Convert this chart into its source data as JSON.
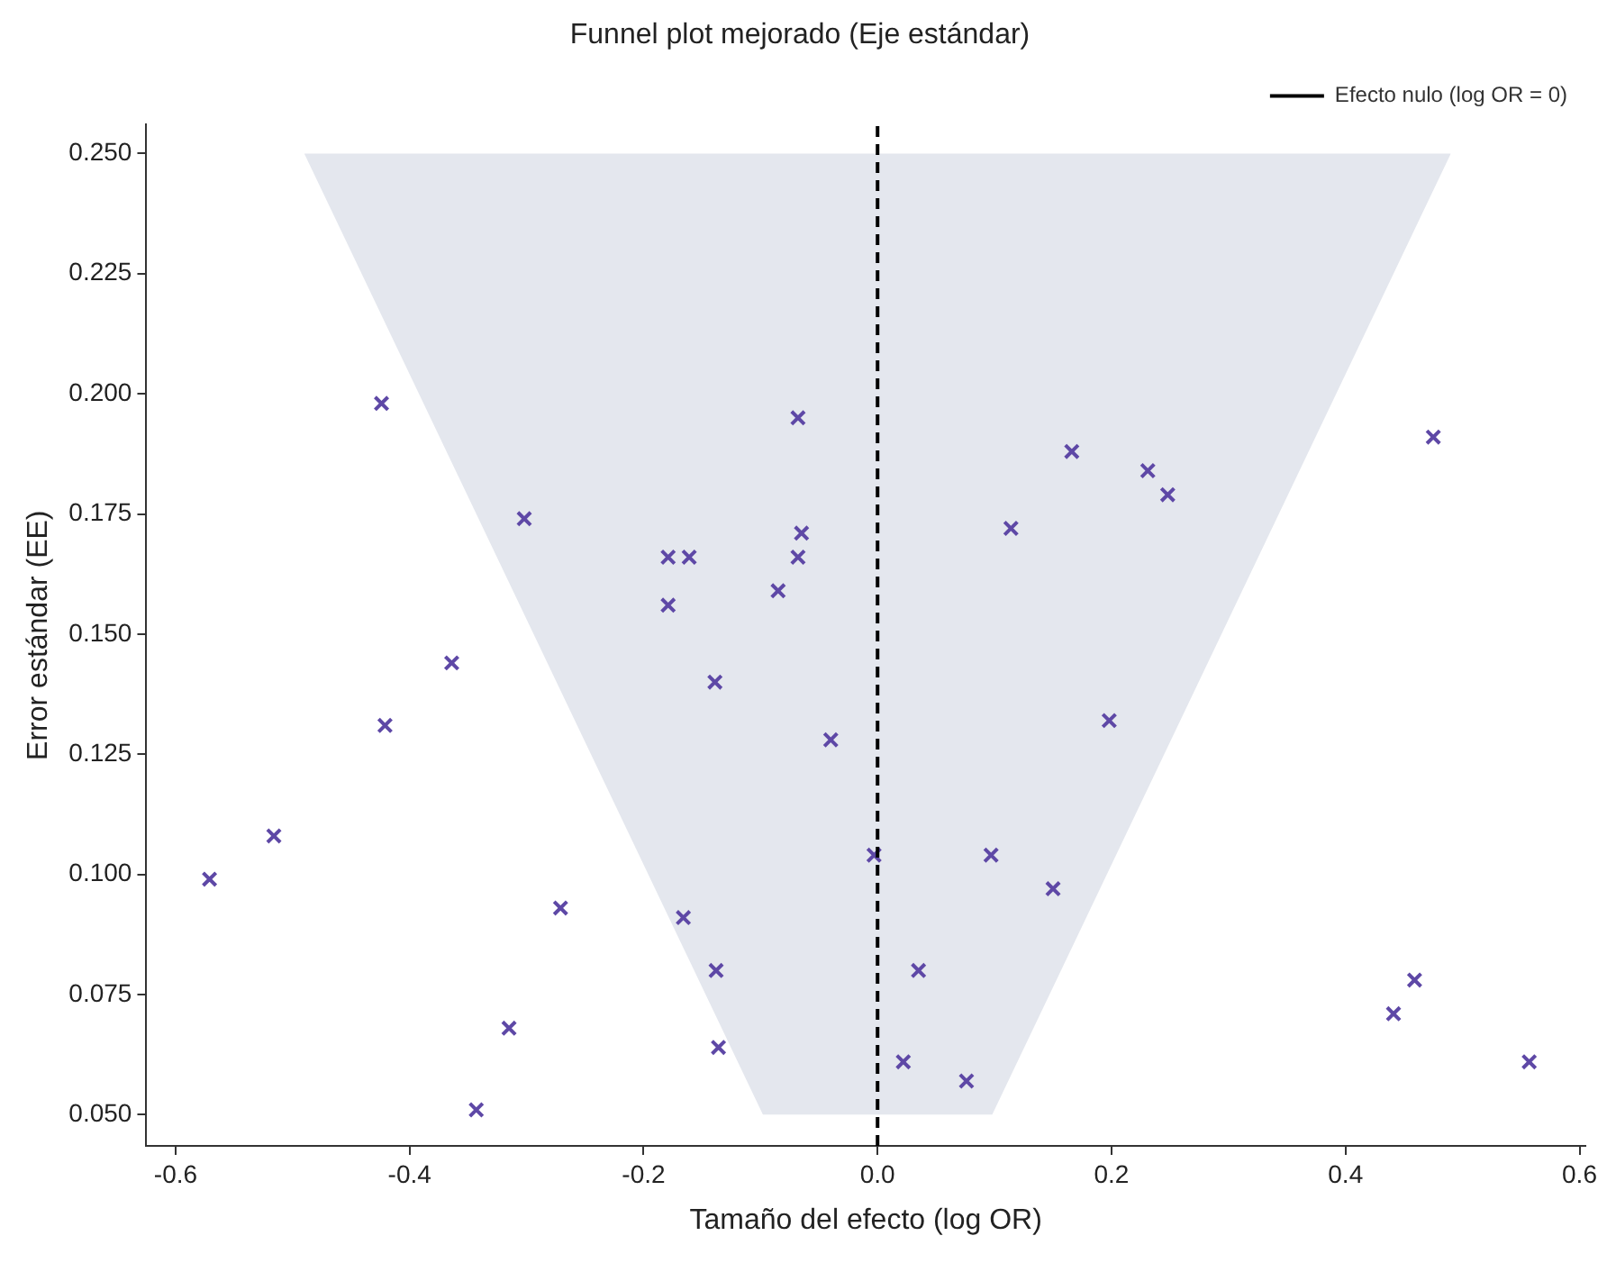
{
  "chart_data": {
    "type": "scatter",
    "title": "Funnel plot mejorado (Eje estándar)",
    "xlabel": "Tamaño del efecto (log OR)",
    "ylabel": "Error estándar (EE)",
    "xlim": [
      -0.625,
      0.605
    ],
    "xticks": [
      {
        "value": -0.6,
        "label": "-0.6"
      },
      {
        "value": -0.4,
        "label": "-0.4"
      },
      {
        "value": -0.2,
        "label": "-0.2"
      },
      {
        "value": 0,
        "label": "0.0"
      },
      {
        "value": 0.2,
        "label": "0.2"
      },
      {
        "value": 0.4,
        "label": "0.4"
      },
      {
        "value": 0.6,
        "label": "0.6"
      }
    ],
    "ylim": [
      0.0435,
      0.256
    ],
    "yticks": [
      {
        "value": 0.05,
        "label": "0.050"
      },
      0.075,
      {
        "value": 0.1,
        "label": "0.100"
      },
      0.125,
      {
        "value": 0.15,
        "label": "0.150"
      },
      0.175,
      {
        "value": 0.2,
        "label": "0.200"
      },
      0.225,
      {
        "value": 0.25,
        "label": "0.250"
      }
    ],
    "grid": false,
    "legend": "top right",
    "ref_lines": [
      {
        "axis": "x",
        "value": 0,
        "label": "Efecto nulo (log OR = 0)",
        "color": "#000000",
        "line_style": "dashed"
      }
    ],
    "series": [
      {
        "type": "area",
        "marker": "none",
        "color": "#e4e7ee",
        "x": [
          -0.49,
          -0.098,
          0.098,
          0.49
        ],
        "values": [
          0.25,
          0.05,
          0.05,
          0.25
        ]
      },
      {
        "type": "scatter",
        "marker": "cross",
        "color": "#5e48a6",
        "x": [
          -0.424,
          -0.302,
          -0.179,
          -0.161,
          -0.179,
          -0.068,
          -0.065,
          -0.068,
          -0.085,
          0.166,
          0.114,
          0.231,
          0.248,
          0.475,
          -0.364,
          -0.139,
          -0.421,
          -0.04,
          -0.516,
          -0.571,
          -0.271,
          -0.166,
          -0.138,
          -0.315,
          -0.136,
          -0.343,
          -0.003,
          0.198,
          0.097,
          0.15,
          0.035,
          0.022,
          0.076,
          0.441,
          0.459,
          0.557
        ],
        "values": [
          0.198,
          0.174,
          0.166,
          0.166,
          0.156,
          0.195,
          0.171,
          0.166,
          0.159,
          0.188,
          0.172,
          0.184,
          0.179,
          0.191,
          0.144,
          0.14,
          0.131,
          0.128,
          0.108,
          0.099,
          0.093,
          0.091,
          0.08,
          0.068,
          0.064,
          0.051,
          0.104,
          0.132,
          0.104,
          0.097,
          0.08,
          0.061,
          0.057,
          0.071,
          0.078,
          0.061
        ]
      }
    ]
  }
}
